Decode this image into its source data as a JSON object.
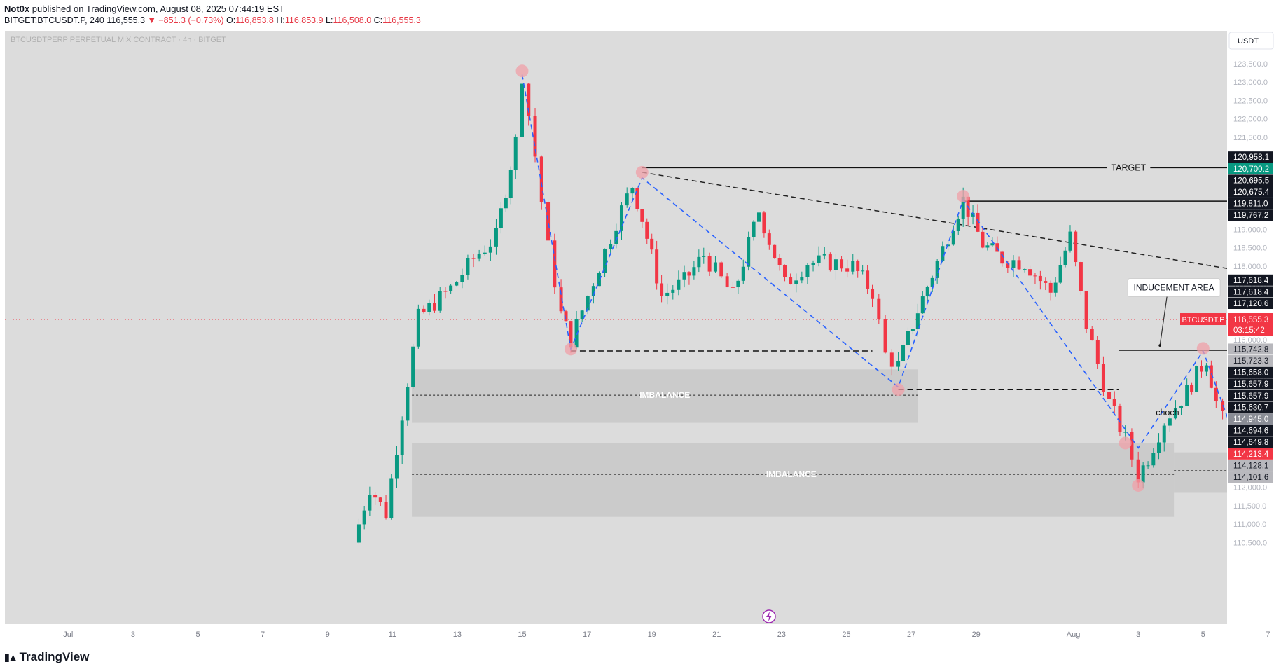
{
  "header": {
    "author": "Not0x",
    "published": "published on TradingView.com, August 08, 2025 07:44:19 EST",
    "symbol": "BITGET:BTCUSDT.P, 240",
    "last": "116,555.3",
    "change": "▼ −851.3 (−0.73%)",
    "o_label": "O:",
    "o_val": "116,853.8",
    "h_label": "H:",
    "h_val": "116,853.9",
    "l_label": "L:",
    "l_val": "116,508.0",
    "c_label": "C:",
    "c_val": "116,555.3"
  },
  "watermark": "BTCUSDTPERP PERPETUAL MIX CONTRACT · 4h · BITGET",
  "currency_button": "USDT",
  "footer": {
    "logo_text": "TradingView"
  },
  "colors": {
    "up": "#089981",
    "down": "#f23645",
    "bg": "#dcdcdc",
    "target_zone": "#a9d0c6",
    "stop_zone": "#e8b3b8",
    "pattern": "#2962ff"
  },
  "chart_data": {
    "type": "candlestick",
    "instrument": "BTCUSDT.P",
    "interval": "4h",
    "ylim": [
      110300,
      123800
    ],
    "y_ticks": [
      110500,
      111000,
      111500,
      112000,
      112500,
      113000,
      113500,
      114000,
      114500,
      115000,
      115500,
      116000,
      116500,
      117000,
      117500,
      118000,
      118500,
      119000,
      119500,
      120000,
      120500,
      121000,
      121500,
      122000,
      122500,
      123000,
      123500
    ],
    "y_tick_labels": [
      "110,500.0",
      "111,000.0",
      "111,500.0",
      "112,000.0",
      "112,500.0",
      "113,000.0",
      "113,500.0",
      "114,000.0",
      "114,500.0",
      "115,000.0",
      "115,500.0",
      "116,000.0",
      "116,500.0",
      "117,000.0",
      "117,500.0",
      "118,000.0",
      "118,500.0",
      "119,000.0",
      "119,500.0",
      "120,000.0",
      "120,500.0",
      "121,000.0",
      "121,500.0",
      "122,000.0",
      "122,500.0",
      "123,000.0",
      "123,500.0"
    ],
    "x_tick_labels": [
      {
        "label": "Jul",
        "day": 0
      },
      {
        "label": "3",
        "day": 2
      },
      {
        "label": "5",
        "day": 4
      },
      {
        "label": "7",
        "day": 6
      },
      {
        "label": "9",
        "day": 8
      },
      {
        "label": "11",
        "day": 10
      },
      {
        "label": "13",
        "day": 12
      },
      {
        "label": "15",
        "day": 14
      },
      {
        "label": "17",
        "day": 16
      },
      {
        "label": "19",
        "day": 18
      },
      {
        "label": "21",
        "day": 20
      },
      {
        "label": "23",
        "day": 22
      },
      {
        "label": "25",
        "day": 24
      },
      {
        "label": "27",
        "day": 26
      },
      {
        "label": "29",
        "day": 28
      },
      {
        "label": "Aug",
        "day": 31
      },
      {
        "label": "3",
        "day": 33
      },
      {
        "label": "5",
        "day": 35
      },
      {
        "label": "7",
        "day": 37
      },
      {
        "label": "9",
        "day": 39
      },
      {
        "label": "11",
        "day": 41
      },
      {
        "label": "13",
        "day": 43
      },
      {
        "label": "15",
        "day": 45
      },
      {
        "label": "17",
        "day": 47
      },
      {
        "label": "19",
        "day": 49
      },
      {
        "label": "21",
        "day": 51
      },
      {
        "label": "23",
        "day": 53
      },
      {
        "label": "25",
        "day": 55
      },
      {
        "label": "27",
        "day": 57
      },
      {
        "label": "29",
        "day": 59
      },
      {
        "label": "Sep",
        "day": 62
      }
    ],
    "x_range_days": [
      -1,
      63
    ],
    "candle_path_keys": [
      [
        8.8,
        110500
      ],
      [
        9.3,
        112000
      ],
      [
        9.8,
        111300
      ],
      [
        10.3,
        114000
      ],
      [
        10.8,
        116600
      ],
      [
        11.8,
        117400
      ],
      [
        12.5,
        118200
      ],
      [
        13.2,
        118800
      ],
      [
        13.8,
        121400
      ],
      [
        14.0,
        123200
      ],
      [
        14.4,
        121000
      ],
      [
        14.8,
        118500
      ],
      [
        15.2,
        116700
      ],
      [
        15.5,
        116000
      ],
      [
        16.2,
        117600
      ],
      [
        16.9,
        119200
      ],
      [
        17.4,
        120200
      ],
      [
        17.7,
        119300
      ],
      [
        18.3,
        117200
      ],
      [
        19.0,
        117600
      ],
      [
        19.6,
        118300
      ],
      [
        20.5,
        117200
      ],
      [
        21.3,
        119500
      ],
      [
        22.1,
        117500
      ],
      [
        22.8,
        118100
      ],
      [
        23.5,
        118100
      ],
      [
        24.2,
        118000
      ],
      [
        24.8,
        117300
      ],
      [
        25.2,
        115600
      ],
      [
        25.6,
        115300
      ],
      [
        26.2,
        116800
      ],
      [
        26.8,
        118100
      ],
      [
        27.3,
        119200
      ],
      [
        27.6,
        119800
      ],
      [
        28.2,
        118600
      ],
      [
        28.8,
        118200
      ],
      [
        29.5,
        118100
      ],
      [
        30.3,
        117300
      ],
      [
        30.9,
        118800
      ],
      [
        31.4,
        116400
      ],
      [
        32.1,
        114300
      ],
      [
        32.6,
        113300
      ],
      [
        33.0,
        112300
      ],
      [
        33.3,
        112800
      ],
      [
        33.8,
        113800
      ],
      [
        34.5,
        114600
      ],
      [
        35.1,
        115500
      ],
      [
        35.4,
        114300
      ],
      [
        35.8,
        113400
      ],
      [
        36.4,
        114300
      ],
      [
        36.9,
        115100
      ],
      [
        37.4,
        116400
      ],
      [
        37.8,
        117600
      ],
      [
        38.2,
        116800
      ],
      [
        38.5,
        116600
      ]
    ],
    "pattern_path": [
      [
        14.0,
        123200
      ],
      [
        15.5,
        115750
      ],
      [
        17.7,
        120400
      ],
      [
        25.6,
        114720
      ],
      [
        27.6,
        119800
      ],
      [
        33.0,
        113070
      ],
      [
        35.0,
        115700
      ],
      [
        36.0,
        113300
      ],
      [
        38.0,
        117700
      ]
    ],
    "pivot_points": [
      [
        14.0,
        123300
      ],
      [
        15.5,
        115750
      ],
      [
        17.7,
        120550
      ],
      [
        25.6,
        114650
      ],
      [
        27.6,
        119900
      ],
      [
        32.6,
        113200
      ],
      [
        33.0,
        112050
      ],
      [
        35.0,
        115770
      ],
      [
        36.0,
        113250
      ],
      [
        38.0,
        117650
      ]
    ],
    "trendline": {
      "from": [
        17.7,
        120550
      ],
      "to": [
        41.2,
        117150
      ]
    },
    "horizontal_lines": [
      {
        "from": 15.5,
        "to": 24.8,
        "y": 115700,
        "dash": true
      },
      {
        "from": 25.6,
        "to": 32.4,
        "y": 114650,
        "dash": true
      },
      {
        "from": 32.4,
        "to": 38.3,
        "y": 115720,
        "dash": false
      },
      {
        "from": 17.7,
        "to": 47.3,
        "y": 120675,
        "dash": false
      },
      {
        "from": 27.6,
        "to": 47.3,
        "y": 119767,
        "dash": false
      },
      {
        "from": 38.0,
        "to": 47.3,
        "y": 117618,
        "dash": false
      }
    ],
    "annotations": [
      {
        "text": "TARGET",
        "x": 32.7,
        "y": 120675
      },
      {
        "text": "TARGET",
        "x": 37.4,
        "y": 119767
      },
      {
        "text": "TARGET",
        "x": 42.6,
        "y": 117618
      },
      {
        "text": "BoS",
        "x": 36.3,
        "y": 115770
      },
      {
        "text": "choch",
        "x": 33.9,
        "y": 113870
      }
    ],
    "labels": {
      "inducement": "INDUCEMENT AREA",
      "imbalance_1": "IMBALANCE",
      "imbalance_2": "IMBALANCE",
      "ob_1": "OB",
      "ob_2": "OB",
      "note_lines": [
        "FIBO 50 & 6.86",
        "",
        "IF YOU WANNA BUY",
        "MAKE SURE LOOK AT LTF",
        "MAKING CHoCH ON ZONE",
        "",
        "BUT IF OB IS BREAK SETUP FAILED"
      ]
    },
    "zones": [
      {
        "name": "imbalance-1",
        "x0": 10.6,
        "x1": 26.2,
        "y0": 115200,
        "y1": 113750,
        "fill": "#c9c9c9"
      },
      {
        "name": "imbalance-2",
        "x0": 10.6,
        "x1": 34.1,
        "y0": 113200,
        "y1": 111200,
        "fill": "#c9c9c9"
      },
      {
        "name": "ob-low",
        "x0": 34.1,
        "x1": 43.9,
        "y0": 112950,
        "y1": 111850,
        "fill": "#c9c9c9"
      },
      {
        "name": "ob-high",
        "x0": 38.5,
        "x1": 49.1,
        "y0": 115150,
        "y1": 114550,
        "fill": "#b9c7e8"
      },
      {
        "name": "target-zone",
        "x0": 42.6,
        "x1": 52.7,
        "y0": 120675,
        "y1": 114945,
        "fill": "#a9d0c6"
      },
      {
        "name": "stop-zone",
        "x0": 42.6,
        "x1": 52.7,
        "y0": 114945,
        "y1": 114213,
        "fill": "#e8b3b8"
      }
    ],
    "price_line": 116555.3,
    "price_tags": [
      {
        "text": "120,958.1",
        "value": 120958.1,
        "style": "dark"
      },
      {
        "text": "120,700.2",
        "value": 120700.2,
        "style": "green"
      },
      {
        "text": "120,695.5",
        "value": 120695.5,
        "style": "dark"
      },
      {
        "text": "120,675.4",
        "value": 120675.4,
        "style": "dark"
      },
      {
        "text": "119,811.0",
        "value": 119811.0,
        "style": "dark"
      },
      {
        "text": "119,767.2",
        "value": 119767.2,
        "style": "dark"
      },
      {
        "text": "117,618.4",
        "value": 117618.4,
        "style": "dark",
        "order": 0
      },
      {
        "text": "117,618.4",
        "value": 117618.4,
        "style": "dark",
        "order": 1
      },
      {
        "text": "117,120.6",
        "value": 117120.6,
        "style": "dark"
      },
      {
        "text": "115,742.8",
        "value": 115742.8,
        "style": "grey"
      },
      {
        "text": "115,723.3",
        "value": 115723.3,
        "style": "grey"
      },
      {
        "text": "115,658.0",
        "value": 115658.0,
        "style": "dark"
      },
      {
        "text": "115,657.9",
        "value": 115657.9,
        "style": "dark",
        "order": 0
      },
      {
        "text": "115,657.9",
        "value": 115657.9,
        "style": "dark",
        "order": 1
      },
      {
        "text": "115,630.7",
        "value": 115630.7,
        "style": "dark"
      },
      {
        "text": "114,945.0",
        "value": 114945.0,
        "style": "greydark"
      },
      {
        "text": "114,694.6",
        "value": 114694.6,
        "style": "dark"
      },
      {
        "text": "114,649.8",
        "value": 114649.8,
        "style": "dark"
      },
      {
        "text": "114,213.4",
        "value": 114213.4,
        "style": "red"
      },
      {
        "text": "114,128.1",
        "value": 114128.1,
        "style": "grey"
      },
      {
        "text": "114,101.6",
        "value": 114101.6,
        "style": "grey"
      }
    ],
    "current_price_tag": {
      "symbol": "BTCUSDT.P",
      "price": "116,555.3",
      "countdown": "03:15:42"
    }
  }
}
